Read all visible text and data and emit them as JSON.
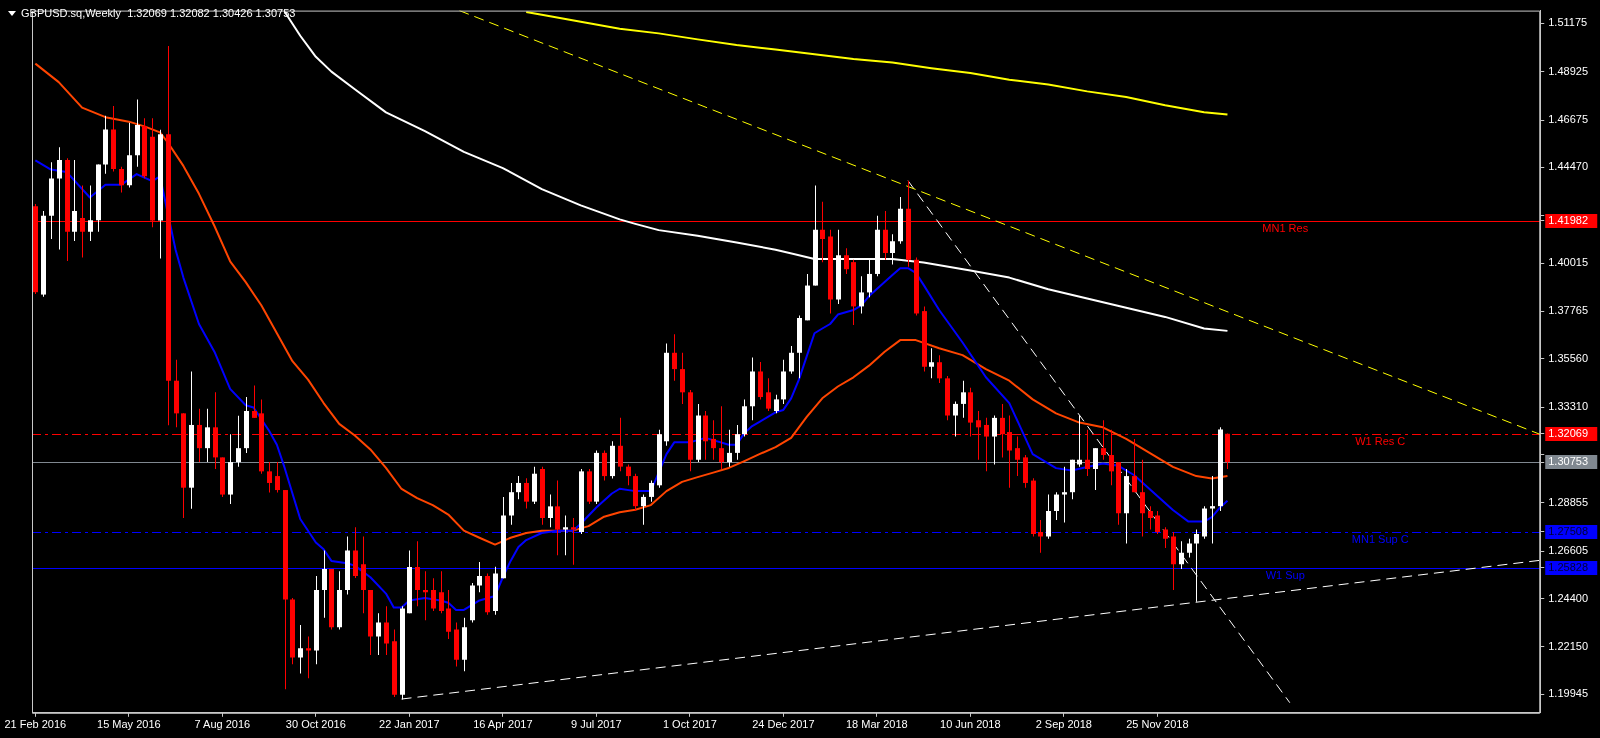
{
  "chart_data": {
    "type": "candlestick",
    "title": "GBPUSD.sq,Weekly  1.32069 1.32082 1.30426 1.30753",
    "x": [
      "2016-02-21",
      "2016-02-28",
      "2016-03-06",
      "2016-03-13",
      "2016-03-20",
      "2016-03-27",
      "2016-04-03",
      "2016-04-10",
      "2016-04-17",
      "2016-04-24",
      "2016-05-01",
      "2016-05-08",
      "2016-05-15",
      "2016-05-22",
      "2016-05-29",
      "2016-06-05",
      "2016-06-12",
      "2016-06-19",
      "2016-06-26",
      "2016-07-03",
      "2016-07-10",
      "2016-07-17",
      "2016-07-24",
      "2016-07-31",
      "2016-08-07",
      "2016-08-14",
      "2016-08-21",
      "2016-08-28",
      "2016-09-04",
      "2016-09-11",
      "2016-09-18",
      "2016-09-25",
      "2016-10-02",
      "2016-10-09",
      "2016-10-16",
      "2016-10-23",
      "2016-10-30",
      "2016-11-06",
      "2016-11-13",
      "2016-11-20",
      "2016-11-27",
      "2016-12-04",
      "2016-12-11",
      "2016-12-18",
      "2016-12-25",
      "2017-01-01",
      "2017-01-08",
      "2017-01-15",
      "2017-01-22",
      "2017-01-29",
      "2017-02-05",
      "2017-02-12",
      "2017-02-19",
      "2017-02-26",
      "2017-03-05",
      "2017-03-12",
      "2017-03-19",
      "2017-03-26",
      "2017-04-02",
      "2017-04-09",
      "2017-04-16",
      "2017-04-23",
      "2017-04-30",
      "2017-05-07",
      "2017-05-14",
      "2017-05-21",
      "2017-05-28",
      "2017-06-04",
      "2017-06-11",
      "2017-06-18",
      "2017-06-25",
      "2017-07-02",
      "2017-07-09",
      "2017-07-16",
      "2017-07-23",
      "2017-07-30",
      "2017-08-06",
      "2017-08-13",
      "2017-08-20",
      "2017-08-27",
      "2017-09-03",
      "2017-09-10",
      "2017-09-17",
      "2017-09-24",
      "2017-10-01",
      "2017-10-08",
      "2017-10-15",
      "2017-10-22",
      "2017-10-29",
      "2017-11-05",
      "2017-11-12",
      "2017-11-19",
      "2017-11-26",
      "2017-12-03",
      "2017-12-10",
      "2017-12-17",
      "2017-12-24",
      "2017-12-31",
      "2018-01-07",
      "2018-01-14",
      "2018-01-21",
      "2018-01-28",
      "2018-02-04",
      "2018-02-11",
      "2018-02-18",
      "2018-02-25",
      "2018-03-04",
      "2018-03-11",
      "2018-03-18",
      "2018-03-25",
      "2018-04-01",
      "2018-04-08",
      "2018-04-15",
      "2018-04-22",
      "2018-04-29",
      "2018-05-06",
      "2018-05-13",
      "2018-05-20",
      "2018-05-27",
      "2018-06-03",
      "2018-06-10",
      "2018-06-17",
      "2018-06-24",
      "2018-07-01",
      "2018-07-08",
      "2018-07-15",
      "2018-07-22",
      "2018-07-29",
      "2018-08-05",
      "2018-08-12",
      "2018-08-19",
      "2018-08-26",
      "2018-09-02",
      "2018-09-09",
      "2018-09-16",
      "2018-09-23",
      "2018-09-30",
      "2018-10-07",
      "2018-10-14",
      "2018-10-21",
      "2018-10-28",
      "2018-11-04",
      "2018-11-11",
      "2018-11-18",
      "2018-11-25",
      "2018-12-02",
      "2018-12-09",
      "2018-12-16",
      "2018-12-23",
      "2018-12-30",
      "2019-01-06",
      "2019-01-13",
      "2019-01-20",
      "2019-01-27"
    ],
    "ohlc": [
      [
        1.4266,
        1.4277,
        1.3858,
        1.3866
      ],
      [
        1.3855,
        1.4244,
        1.3845,
        1.4222
      ],
      [
        1.4222,
        1.4471,
        1.4114,
        1.4395
      ],
      [
        1.4395,
        1.4541,
        1.4065,
        1.4482
      ],
      [
        1.4482,
        1.449,
        1.4011,
        1.4147
      ],
      [
        1.4147,
        1.4482,
        1.4104,
        1.4244
      ],
      [
        1.4212,
        1.4363,
        1.4028,
        1.4147
      ],
      [
        1.4147,
        1.4363,
        1.4104,
        1.4201
      ],
      [
        1.4201,
        1.4461,
        1.4147,
        1.4461
      ],
      [
        1.4461,
        1.4688,
        1.4418,
        1.4624
      ],
      [
        1.4624,
        1.4733,
        1.4428,
        1.444
      ],
      [
        1.444,
        1.445,
        1.433,
        1.4364
      ],
      [
        1.4364,
        1.4655,
        1.4353,
        1.4504
      ],
      [
        1.4504,
        1.4763,
        1.445,
        1.4645
      ],
      [
        1.464,
        1.4676,
        1.4396,
        1.4406
      ],
      [
        1.459,
        1.4676,
        1.4168,
        1.42
      ],
      [
        1.42,
        1.4622,
        1.4023,
        1.4601
      ],
      [
        1.4601,
        1.5012,
        1.3247,
        1.3454
      ],
      [
        1.3454,
        1.3551,
        1.3237,
        1.3302
      ],
      [
        1.3302,
        1.3302,
        1.2815,
        1.2956
      ],
      [
        1.2956,
        1.3497,
        1.2858,
        1.3248
      ],
      [
        1.3248,
        1.3324,
        1.3075,
        1.314
      ],
      [
        1.314,
        1.3324,
        1.3075,
        1.3237
      ],
      [
        1.3237,
        1.34,
        1.3043,
        1.3097
      ],
      [
        1.3097,
        1.3097,
        1.2913,
        1.2924
      ],
      [
        1.2924,
        1.3205,
        1.288,
        1.3075
      ],
      [
        1.3075,
        1.3291,
        1.3054,
        1.314
      ],
      [
        1.314,
        1.3378,
        1.3118,
        1.3313
      ],
      [
        1.3313,
        1.3432,
        1.3281,
        1.3281
      ],
      [
        1.3302,
        1.3367,
        1.3021,
        1.3032
      ],
      [
        1.3032,
        1.3075,
        1.2934,
        1.2978
      ],
      [
        1.301,
        1.3075,
        1.2934,
        1.2945
      ],
      [
        1.2945,
        1.2945,
        1.2018,
        1.2436
      ],
      [
        1.2436,
        1.2442,
        1.2134,
        1.2166
      ],
      [
        1.2166,
        1.2317,
        1.2091,
        1.2209
      ],
      [
        1.2209,
        1.2263,
        1.2069,
        1.2198
      ],
      [
        1.2198,
        1.2545,
        1.2134,
        1.248
      ],
      [
        1.248,
        1.2664,
        1.235,
        1.2577
      ],
      [
        1.2577,
        1.2577,
        1.2296,
        1.2306
      ],
      [
        1.2306,
        1.2567,
        1.2296,
        1.248
      ],
      [
        1.248,
        1.2729,
        1.2459,
        1.2664
      ],
      [
        1.2664,
        1.2772,
        1.2535,
        1.2545
      ],
      [
        1.26,
        1.2729,
        1.2371,
        1.248
      ],
      [
        1.248,
        1.248,
        1.2177,
        1.2263
      ],
      [
        1.2263,
        1.2371,
        1.2177,
        1.2328
      ],
      [
        1.2328,
        1.2404,
        1.2177,
        1.2231
      ],
      [
        1.2241,
        1.2296,
        1.1981,
        1.1992
      ],
      [
        1.1992,
        1.2404,
        1.197,
        1.2393
      ],
      [
        1.2371,
        1.2664,
        1.2371,
        1.2587
      ],
      [
        1.2587,
        1.2707,
        1.2404,
        1.248
      ],
      [
        1.248,
        1.2567,
        1.2339,
        1.2469
      ],
      [
        1.248,
        1.2534,
        1.2382,
        1.2393
      ],
      [
        1.2469,
        1.2567,
        1.2371,
        1.2382
      ],
      [
        1.2393,
        1.248,
        1.2252,
        1.2285
      ],
      [
        1.2296,
        1.2328,
        1.2123,
        1.2155
      ],
      [
        1.2155,
        1.235,
        1.2101,
        1.2306
      ],
      [
        1.2339,
        1.2512,
        1.2328,
        1.2501
      ],
      [
        1.2501,
        1.261,
        1.2469,
        1.2545
      ],
      [
        1.2545,
        1.2556,
        1.2365,
        1.2376
      ],
      [
        1.2382,
        1.2588,
        1.2365,
        1.2556
      ],
      [
        1.2534,
        1.2913,
        1.2534,
        1.2827
      ],
      [
        1.2827,
        1.2978,
        1.2783,
        1.2935
      ],
      [
        1.2935,
        1.301,
        1.2902,
        1.2978
      ],
      [
        1.2978,
        1.3,
        1.2859,
        1.2891
      ],
      [
        1.2891,
        1.3054,
        1.288,
        1.3021
      ],
      [
        1.3043,
        1.3054,
        1.2783,
        1.2815
      ],
      [
        1.2815,
        1.2924,
        1.2772,
        1.2869
      ],
      [
        1.2869,
        1.2989,
        1.2641,
        1.2761
      ],
      [
        1.2761,
        1.2827,
        1.2641,
        1.2772
      ],
      [
        1.2772,
        1.2815,
        1.2597,
        1.2761
      ],
      [
        1.275,
        1.3043,
        1.274,
        1.3032
      ],
      [
        1.3032,
        1.3043,
        1.288,
        1.2891
      ],
      [
        1.2891,
        1.3129,
        1.288,
        1.3118
      ],
      [
        1.3118,
        1.3129,
        1.2989,
        1.301
      ],
      [
        1.301,
        1.3172,
        1.2999,
        1.3151
      ],
      [
        1.3151,
        1.3281,
        1.3032,
        1.3054
      ],
      [
        1.3054,
        1.3064,
        1.2967,
        1.301
      ],
      [
        1.301,
        1.3021,
        1.2848,
        1.287
      ],
      [
        1.287,
        1.2924,
        1.2783,
        1.2913
      ],
      [
        1.2913,
        1.2989,
        1.2891,
        1.2978
      ],
      [
        1.2967,
        1.3226,
        1.2956,
        1.3205
      ],
      [
        1.3172,
        1.3627,
        1.3151,
        1.3584
      ],
      [
        1.3584,
        1.367,
        1.3454,
        1.3508
      ],
      [
        1.3508,
        1.3584,
        1.3346,
        1.34
      ],
      [
        1.34,
        1.3411,
        1.3032,
        1.3086
      ],
      [
        1.3086,
        1.3346,
        1.3075,
        1.3292
      ],
      [
        1.3292,
        1.3313,
        1.3086,
        1.3172
      ],
      [
        1.3183,
        1.327,
        1.3086,
        1.314
      ],
      [
        1.314,
        1.3335,
        1.3043,
        1.3075
      ],
      [
        1.3075,
        1.3226,
        1.3054,
        1.3118
      ],
      [
        1.3118,
        1.3248,
        1.3086,
        1.3205
      ],
      [
        1.3205,
        1.3367,
        1.3194,
        1.3335
      ],
      [
        1.3335,
        1.3562,
        1.327,
        1.3497
      ],
      [
        1.3497,
        1.3541,
        1.3367,
        1.3378
      ],
      [
        1.34,
        1.3465,
        1.3313,
        1.3324
      ],
      [
        1.3313,
        1.3389,
        1.3302,
        1.3367
      ],
      [
        1.3367,
        1.3551,
        1.3346,
        1.3497
      ],
      [
        1.3497,
        1.3616,
        1.3486,
        1.3584
      ],
      [
        1.3584,
        1.3757,
        1.3465,
        1.3746
      ],
      [
        1.3735,
        1.3951,
        1.3735,
        1.3897
      ],
      [
        1.3897,
        1.4363,
        1.3897,
        1.4157
      ],
      [
        1.4157,
        1.4287,
        1.4006,
        1.4114
      ],
      [
        1.4125,
        1.4157,
        1.3767,
        1.3832
      ],
      [
        1.3832,
        1.4157,
        1.3811,
        1.4038
      ],
      [
        1.4038,
        1.4071,
        1.3951,
        1.3973
      ],
      [
        1.4006,
        1.4017,
        1.3713,
        1.38
      ],
      [
        1.38,
        1.394,
        1.3767,
        1.3865
      ],
      [
        1.3865,
        1.4017,
        1.3843,
        1.3951
      ],
      [
        1.3951,
        1.4222,
        1.394,
        1.4157
      ],
      [
        1.4157,
        1.4244,
        1.4017,
        1.4049
      ],
      [
        1.4049,
        1.4136,
        1.3995,
        1.4103
      ],
      [
        1.4103,
        1.4309,
        1.4092,
        1.4255
      ],
      [
        1.4255,
        1.4385,
        1.3984,
        1.4017
      ],
      [
        1.4017,
        1.4028,
        1.3757,
        1.3767
      ],
      [
        1.3778,
        1.38,
        1.3497,
        1.3519
      ],
      [
        1.3519,
        1.3605,
        1.3465,
        1.354
      ],
      [
        1.354,
        1.3573,
        1.3443,
        1.3465
      ],
      [
        1.3465,
        1.3476,
        1.327,
        1.3292
      ],
      [
        1.3292,
        1.3357,
        1.3194,
        1.3346
      ],
      [
        1.3346,
        1.3454,
        1.3281,
        1.34
      ],
      [
        1.34,
        1.3421,
        1.3194,
        1.3259
      ],
      [
        1.327,
        1.3313,
        1.3086,
        1.3237
      ],
      [
        1.3248,
        1.3281,
        1.3032,
        1.3194
      ],
      [
        1.3194,
        1.3292,
        1.3064,
        1.3281
      ],
      [
        1.3281,
        1.3346,
        1.3097,
        1.3205
      ],
      [
        1.3215,
        1.3292,
        1.2956,
        1.3129
      ],
      [
        1.314,
        1.3194,
        1.301,
        1.3086
      ],
      [
        1.3097,
        1.3108,
        1.2956,
        1.2978
      ],
      [
        1.2989,
        1.3,
        1.2729,
        1.274
      ],
      [
        1.275,
        1.2805,
        1.2653,
        1.2729
      ],
      [
        1.2729,
        1.2924,
        1.2718,
        1.2848
      ],
      [
        1.2848,
        1.2935,
        1.2805,
        1.2924
      ],
      [
        1.2924,
        1.3054,
        1.2794,
        1.2935
      ],
      [
        1.2935,
        1.3086,
        1.2902,
        1.3086
      ],
      [
        1.3064,
        1.3292,
        1.3054,
        1.3086
      ],
      [
        1.3086,
        1.3226,
        1.301,
        1.3043
      ],
      [
        1.3043,
        1.314,
        1.2945,
        1.314
      ],
      [
        1.314,
        1.327,
        1.3086,
        1.3108
      ],
      [
        1.3108,
        1.3226,
        1.2967,
        1.3032
      ],
      [
        1.3075,
        1.3075,
        1.2783,
        1.2837
      ],
      [
        1.2837,
        1.3043,
        1.2696,
        1.301
      ],
      [
        1.301,
        1.3183,
        1.2935,
        1.2935
      ],
      [
        1.2935,
        1.3086,
        1.2729,
        1.2837
      ],
      [
        1.2848,
        1.287,
        1.2761,
        1.2815
      ],
      [
        1.2826,
        1.2848,
        1.274,
        1.275
      ],
      [
        1.2761,
        1.2772,
        1.2675,
        1.2718
      ],
      [
        1.2729,
        1.275,
        1.248,
        1.2599
      ],
      [
        1.2599,
        1.2707,
        1.2577,
        1.2653
      ],
      [
        1.2653,
        1.2718,
        1.2631,
        1.2696
      ],
      [
        1.2696,
        1.2761,
        1.2425,
        1.274
      ],
      [
        1.2729,
        1.287,
        1.2718,
        1.2859
      ],
      [
        1.2859,
        1.301,
        1.2696,
        1.287
      ],
      [
        1.287,
        1.3237,
        1.2848,
        1.3227
      ],
      [
        1.32069,
        1.32082,
        1.30426,
        1.30753
      ]
    ],
    "colors": [
      "#ff0000",
      "#ffffff",
      "#ffffff",
      "#ffffff",
      "#ff0000",
      "#ffffff",
      "#ff0000",
      "#ffffff",
      "#ffffff",
      "#ffffff",
      "#ff0000",
      "#ff0000",
      "#ffffff",
      "#ffffff",
      "#ff0000",
      "#ff0000",
      "#ffffff",
      "#ff0000",
      "#ff0000",
      "#ff0000",
      "#ffffff",
      "#ff0000",
      "#ffffff",
      "#ff0000",
      "#ff0000",
      "#ffffff",
      "#ffffff",
      "#ffffff",
      "#ff0000",
      "#ff0000",
      "#ff0000",
      "#ff0000",
      "#ff0000",
      "#ff0000",
      "#ffffff",
      "#ff0000",
      "#ffffff",
      "#ffffff",
      "#ff0000",
      "#ffffff",
      "#ffffff",
      "#ff0000",
      "#ff0000",
      "#ff0000",
      "#ffffff",
      "#ff0000",
      "#ff0000",
      "#ffffff",
      "#ffffff",
      "#ff0000",
      "#ff0000",
      "#ff0000",
      "#ff0000",
      "#ff0000",
      "#ff0000",
      "#ffffff",
      "#ffffff",
      "#ffffff",
      "#ff0000",
      "#ffffff",
      "#ffffff",
      "#ffffff",
      "#ffffff",
      "#ff0000",
      "#ffffff",
      "#ff0000",
      "#ffffff",
      "#ff0000",
      "#ffffff",
      "#ff0000",
      "#ffffff",
      "#ff0000",
      "#ffffff",
      "#ff0000",
      "#ffffff",
      "#ff0000",
      "#ff0000",
      "#ff0000",
      "#ffffff",
      "#ffffff",
      "#ffffff",
      "#ffffff",
      "#ff0000",
      "#ff0000",
      "#ff0000",
      "#ffffff",
      "#ff0000",
      "#ff0000",
      "#ff0000",
      "#ffffff",
      "#ffffff",
      "#ffffff",
      "#ffffff",
      "#ff0000",
      "#ff0000",
      "#ffffff",
      "#ffffff",
      "#ffffff",
      "#ffffff",
      "#ffffff",
      "#ffffff",
      "#ff0000",
      "#ff0000",
      "#ffffff",
      "#ff0000",
      "#ff0000",
      "#ffffff",
      "#ffffff",
      "#ffffff",
      "#ff0000",
      "#ffffff",
      "#ffffff",
      "#ff0000",
      "#ff0000",
      "#ff0000",
      "#ffffff",
      "#ff0000",
      "#ff0000",
      "#ffffff",
      "#ffffff",
      "#ff0000",
      "#ff0000",
      "#ff0000",
      "#ffffff",
      "#ff0000",
      "#ff0000",
      "#ff0000",
      "#ff0000",
      "#ff0000",
      "#ff0000",
      "#ffffff",
      "#ffffff",
      "#ffffff",
      "#ffffff",
      "#ffffff",
      "#ff0000",
      "#ffffff",
      "#ff0000",
      "#ff0000",
      "#ff0000",
      "#ffffff",
      "#ff0000",
      "#ff0000",
      "#ff0000",
      "#ff0000",
      "#ff0000",
      "#ff0000",
      "#ffffff",
      "#ffffff",
      "#ffffff",
      "#ffffff",
      "#ffffff",
      "#ffffff",
      "#ff0000"
    ],
    "series": [
      {
        "type": "line",
        "color": "#0000ff",
        "x": [
          "2016-02-21",
          "2016-03-06",
          "2016-03-20",
          "2016-04-10",
          "2016-04-24",
          "2016-05-08",
          "2016-05-22",
          "2016-06-05",
          "2016-06-12",
          "2016-06-26",
          "2016-07-03",
          "2016-07-17",
          "2016-07-31",
          "2016-08-14",
          "2016-08-28",
          "2016-09-04",
          "2016-09-18",
          "2016-09-25",
          "2016-10-02",
          "2016-10-16",
          "2016-10-30",
          "2016-11-06",
          "2016-11-13",
          "2016-11-27",
          "2016-12-04",
          "2016-12-18",
          "2017-01-01",
          "2017-01-08",
          "2017-01-15",
          "2017-01-22",
          "2017-02-05",
          "2017-02-19",
          "2017-02-26",
          "2017-03-05",
          "2017-03-12",
          "2017-03-26",
          "2017-04-09",
          "2017-04-16",
          "2017-04-23",
          "2017-04-30",
          "2017-05-07",
          "2017-05-21",
          "2017-06-04",
          "2017-06-18",
          "2017-06-25",
          "2017-07-09",
          "2017-07-23",
          "2017-07-30",
          "2017-08-13",
          "2017-08-27",
          "2017-09-03",
          "2017-09-10",
          "2017-09-17",
          "2017-10-01",
          "2017-10-15",
          "2017-11-05",
          "2017-11-12",
          "2017-11-19",
          "2017-11-26",
          "2017-12-03",
          "2017-12-17",
          "2017-12-24",
          "2017-12-31",
          "2018-01-07",
          "2018-01-14",
          "2018-01-21",
          "2018-01-28",
          "2018-02-04",
          "2018-02-11",
          "2018-02-25",
          "2018-03-04",
          "2018-03-11",
          "2018-03-18",
          "2018-03-25",
          "2018-04-01",
          "2018-04-08",
          "2018-04-15",
          "2018-04-22",
          "2018-04-29",
          "2018-05-13",
          "2018-06-03",
          "2018-06-24",
          "2018-07-15",
          "2018-08-05",
          "2018-08-26",
          "2018-09-09",
          "2018-10-07",
          "2018-10-21",
          "2018-11-04",
          "2018-11-11",
          "2018-11-18",
          "2018-12-09",
          "2018-12-23",
          "2019-01-06",
          "2019-01-13",
          "2019-01-20",
          "2019-01-27"
        ],
        "values": [
          1.448,
          1.4437,
          1.4426,
          1.4307,
          1.4366,
          1.4366,
          1.4416,
          1.4383,
          1.4405,
          1.4064,
          1.3934,
          1.3718,
          1.3588,
          1.3416,
          1.334,
          1.3329,
          1.3221,
          1.3156,
          1.3048,
          1.281,
          1.2701,
          1.2669,
          1.2615,
          1.2604,
          1.2593,
          1.2539,
          1.2463,
          1.2398,
          1.2398,
          1.2431,
          1.2442,
          1.2431,
          1.242,
          1.2387,
          1.2387,
          1.2431,
          1.2452,
          1.2539,
          1.2615,
          1.268,
          1.2712,
          1.2745,
          1.2756,
          1.2756,
          1.2788,
          1.2864,
          1.2929,
          1.2951,
          1.294,
          1.294,
          1.3026,
          1.3112,
          1.3167,
          1.3167,
          1.3188,
          1.3156,
          1.3156,
          1.321,
          1.3243,
          1.3264,
          1.3307,
          1.3318,
          1.3372,
          1.3459,
          1.3567,
          1.3675,
          1.3697,
          1.3718,
          1.3762,
          1.3783,
          1.3805,
          1.3848,
          1.3881,
          1.3913,
          1.3946,
          1.3978,
          1.3978,
          1.3956,
          1.39,
          1.3783,
          1.3632,
          1.347,
          1.335,
          1.3112,
          1.3047,
          1.3036,
          1.3069,
          1.3058,
          1.3015,
          1.2982,
          1.295,
          1.2852,
          1.2798,
          1.2798,
          1.2819,
          1.2862,
          1.2895
        ]
      },
      {
        "type": "line",
        "color": "#ff4500",
        "x": [
          "2016-02-21",
          "2016-03-13",
          "2016-04-03",
          "2016-04-24",
          "2016-05-15",
          "2016-05-29",
          "2016-06-12",
          "2016-06-19",
          "2016-07-03",
          "2016-07-17",
          "2016-07-31",
          "2016-08-14",
          "2016-08-28",
          "2016-09-11",
          "2016-09-25",
          "2016-10-09",
          "2016-10-23",
          "2016-11-06",
          "2016-11-20",
          "2016-12-04",
          "2016-12-18",
          "2017-01-01",
          "2017-01-15",
          "2017-01-29",
          "2017-02-12",
          "2017-02-26",
          "2017-03-12",
          "2017-03-26",
          "2017-04-09",
          "2017-04-23",
          "2017-05-07",
          "2017-05-21",
          "2017-06-18",
          "2017-07-02",
          "2017-07-16",
          "2017-07-30",
          "2017-08-13",
          "2017-08-27",
          "2017-09-10",
          "2017-09-24",
          "2017-10-08",
          "2017-10-22",
          "2017-11-05",
          "2017-11-19",
          "2017-12-03",
          "2017-12-17",
          "2017-12-31",
          "2018-01-14",
          "2018-01-28",
          "2018-02-11",
          "2018-02-25",
          "2018-03-11",
          "2018-03-25",
          "2018-04-08",
          "2018-04-22",
          "2018-05-13",
          "2018-06-03",
          "2018-06-24",
          "2018-07-15",
          "2018-08-05",
          "2018-08-26",
          "2018-09-16",
          "2018-10-07",
          "2018-10-28",
          "2018-11-18",
          "2018-12-09",
          "2018-12-30",
          "2019-01-13",
          "2019-01-27"
        ],
        "values": [
          1.493,
          1.4844,
          1.4725,
          1.4681,
          1.466,
          1.4638,
          1.461,
          1.4563,
          1.4454,
          1.4324,
          1.4173,
          1.401,
          1.3913,
          1.3805,
          1.3675,
          1.3545,
          1.3459,
          1.335,
          1.3253,
          1.3199,
          1.3134,
          1.3048,
          1.295,
          1.2907,
          1.2875,
          1.2831,
          1.2756,
          1.2723,
          1.2691,
          1.2723,
          1.2745,
          1.2756,
          1.2756,
          1.2777,
          1.2821,
          1.2842,
          1.2853,
          1.2875,
          1.294,
          1.2983,
          1.3005,
          1.3026,
          1.3048,
          1.308,
          1.3113,
          1.3145,
          1.3188,
          1.3286,
          1.3372,
          1.3427,
          1.347,
          1.3524,
          1.3589,
          1.3643,
          1.3643,
          1.3605,
          1.3573,
          1.3508,
          1.3454,
          1.3367,
          1.3302,
          1.3259,
          1.3237,
          1.3183,
          1.3118,
          1.3053,
          1.301,
          1.2999,
          1.301
        ]
      },
      {
        "type": "line",
        "color": "#ffffff",
        "x": [
          "2016-10-02",
          "2016-10-16",
          "2016-10-30",
          "2016-11-13",
          "2016-12-04",
          "2017-01-01",
          "2017-02-05",
          "2017-03-12",
          "2017-04-16",
          "2017-05-21",
          "2017-06-25",
          "2017-07-30",
          "2017-08-13",
          "2017-09-03",
          "2017-10-08",
          "2017-11-12",
          "2017-12-17",
          "2018-01-21",
          "2018-02-25",
          "2018-04-01",
          "2018-04-29",
          "2018-06-10",
          "2018-07-15",
          "2018-08-19",
          "2018-09-23",
          "2018-10-28",
          "2018-12-02",
          "2019-01-06",
          "2019-01-27"
        ],
        "values": [
          1.5172,
          1.506,
          1.4962,
          1.4893,
          1.4811,
          1.4703,
          1.4616,
          1.4519,
          1.4444,
          1.4346,
          1.427,
          1.4205,
          1.4184,
          1.4155,
          1.4129,
          1.4097,
          1.4064,
          1.4021,
          1.4021,
          1.4021,
          1.4004,
          1.3967,
          1.3934,
          1.388,
          1.3837,
          1.3794,
          1.3751,
          1.3697,
          1.3686
        ]
      },
      {
        "type": "line",
        "color": "#ffff00",
        "x": [
          "2017-05-07",
          "2017-05-21",
          "2017-06-25",
          "2017-07-30",
          "2017-09-03",
          "2017-10-08",
          "2017-11-12",
          "2017-12-17",
          "2018-01-21",
          "2018-02-25",
          "2018-04-01",
          "2018-05-06",
          "2018-06-10",
          "2018-07-15",
          "2018-08-19",
          "2018-09-23",
          "2018-10-28",
          "2018-12-02",
          "2019-01-06",
          "2019-01-27"
        ],
        "values": [
          1.517,
          1.5158,
          1.5125,
          1.5093,
          1.5071,
          1.5043,
          1.5017,
          1.4996,
          1.4974,
          1.4952,
          1.4935,
          1.4909,
          1.4887,
          1.4855,
          1.4833,
          1.4801,
          1.4775,
          1.4736,
          1.4704,
          1.4693
        ]
      },
      {
        "type": "line",
        "color": "#ffff00",
        "line_style": "dashed",
        "x": [
          "2017-03-08",
          "2019-11-04"
        ],
        "values": [
          1.5177,
          1.3204
        ]
      },
      {
        "type": "line",
        "color": "#ffffff",
        "line_style": "dashed",
        "x": [
          "2017-01-15",
          "2019-11-04"
        ],
        "values": [
          1.1972,
          1.2618
        ]
      },
      {
        "type": "line",
        "color": "#ffffff",
        "line_style": "dashed",
        "x": [
          "2018-04-15",
          "2019-03-24"
        ],
        "values": [
          1.4385,
          1.1955
        ]
      }
    ],
    "xlim": [
      "2016-02-18",
      "2019-11-04"
    ],
    "xticks": [
      {
        "value": "2016-02-21",
        "label": "21 Feb 2016"
      },
      {
        "value": "2016-05-15",
        "label": "15 May 2016"
      },
      {
        "value": "2016-08-07",
        "label": "7 Aug 2016"
      },
      {
        "value": "2016-10-30",
        "label": "30 Oct 2016"
      },
      {
        "value": "2017-01-22",
        "label": "22 Jan 2017"
      },
      {
        "value": "2017-04-16",
        "label": "16 Apr 2017"
      },
      {
        "value": "2017-07-09",
        "label": "9 Jul 2017"
      },
      {
        "value": "2017-10-01",
        "label": "1 Oct 2017"
      },
      {
        "value": "2017-12-24",
        "label": "24 Dec 2017"
      },
      {
        "value": "2018-03-18",
        "label": "18 Mar 2018"
      },
      {
        "value": "2018-06-10",
        "label": "10 Jun 2018"
      },
      {
        "value": "2018-09-02",
        "label": "2 Sep 2018"
      },
      {
        "value": "2018-11-25",
        "label": "25 Nov 2018"
      }
    ],
    "ylim": [
      1.1908,
      1.5177
    ],
    "yticks": [
      1.51175,
      1.48925,
      1.46675,
      {
        "value": 1.4447,
        "label": "1.44470"
      },
      {
        "value": 1.4222,
        "label": null
      },
      1.41982,
      1.40015,
      1.37765,
      {
        "value": 1.3556,
        "label": "1.35560"
      },
      {
        "value": 1.3331,
        "label": "1.33310"
      },
      1.32069,
      {
        "value": 1.31105,
        "label": null
      },
      1.30753,
      1.28855,
      1.27508,
      1.26605,
      1.25828,
      {
        "value": 1.244,
        "label": "1.24400"
      },
      {
        "value": 1.2215,
        "label": "1.22150"
      },
      1.19945
    ],
    "ref_lines": [
      {
        "axis": "y",
        "value": 1.41982,
        "label": "MN1 Res",
        "color": "#ff0000",
        "line_style": "solid"
      },
      {
        "axis": "y",
        "value": 1.32069,
        "label": "W1 Res C",
        "color": "#ff0000",
        "line_style": "dashed"
      },
      {
        "axis": "y",
        "value": 1.30753,
        "color": "#808890",
        "line_style": "solid"
      },
      {
        "axis": "y",
        "value": 1.27508,
        "label": "MN1 Sup C",
        "color": "#0000ff",
        "line_style": "dashed"
      },
      {
        "axis": "y",
        "value": 1.25828,
        "label": "W1 Sup",
        "color": "#0000ff",
        "line_style": "solid"
      }
    ],
    "grid": false,
    "legend": false
  }
}
